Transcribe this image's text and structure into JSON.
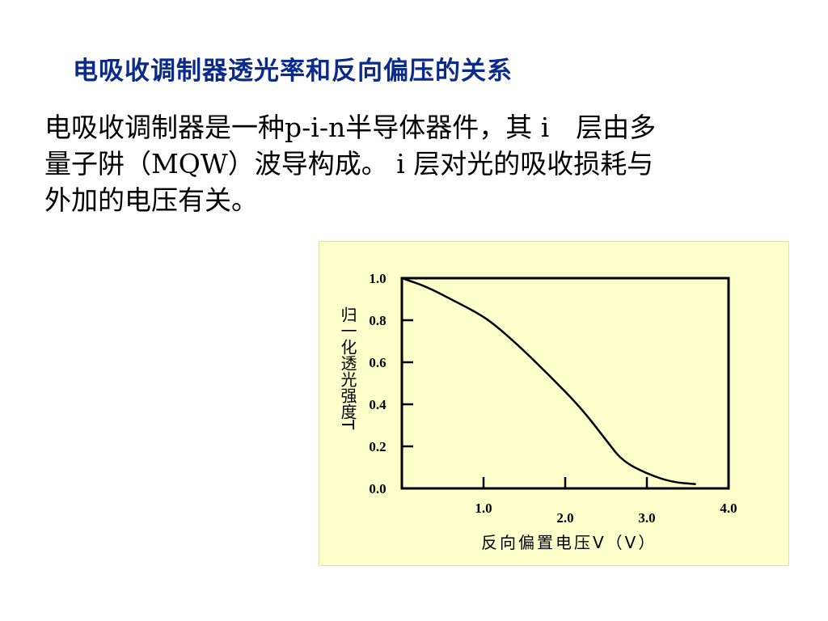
{
  "slide": {
    "title": "电吸收调制器透光率和反向偏压的关系",
    "paragraph_lines": [
      "电吸收调制器是一种p-i-n半导体器件，其 i　层由多",
      "量子阱（MQW）波导构成。 i 层对光的吸收损耗与",
      "外加的电压有关。"
    ]
  },
  "chart_data": {
    "type": "line",
    "title": "",
    "xlabel": "反向偏置电压V（V）",
    "ylabel": "归一化透光强度T",
    "xlim": [
      0,
      4
    ],
    "ylim": [
      0,
      1
    ],
    "x_ticks": [
      "1.0",
      "2.0",
      "3.0",
      "4.0"
    ],
    "y_ticks": [
      "0.0",
      "0.2",
      "0.4",
      "0.6",
      "0.8",
      "1.0"
    ],
    "grid": false,
    "series": [
      {
        "x": [
          0.0,
          0.3,
          0.6,
          0.9,
          1.1,
          1.4,
          1.8,
          2.2,
          2.5,
          2.7,
          3.0,
          3.3,
          3.6
        ],
        "y": [
          1.0,
          0.96,
          0.9,
          0.84,
          0.79,
          0.69,
          0.54,
          0.38,
          0.23,
          0.13,
          0.07,
          0.03,
          0.02
        ]
      }
    ],
    "color": "#000000",
    "background": "#ffffcc"
  }
}
